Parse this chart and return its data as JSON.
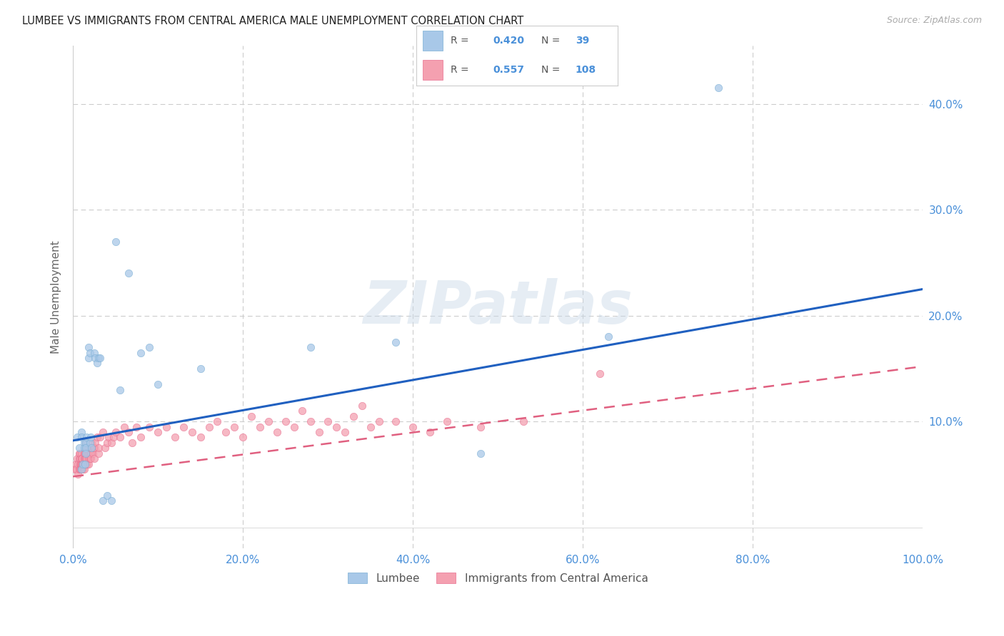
{
  "title": "LUMBEE VS IMMIGRANTS FROM CENTRAL AMERICA MALE UNEMPLOYMENT CORRELATION CHART",
  "source": "Source: ZipAtlas.com",
  "ylabel": "Male Unemployment",
  "xlim": [
    0,
    1.0
  ],
  "ylim": [
    -0.02,
    0.455
  ],
  "xticks": [
    0.0,
    0.2,
    0.4,
    0.6,
    0.8,
    1.0
  ],
  "xtick_labels": [
    "0.0%",
    "20.0%",
    "40.0%",
    "60.0%",
    "80.0%",
    "100.0%"
  ],
  "yticks": [
    0.0,
    0.1,
    0.2,
    0.3,
    0.4
  ],
  "ytick_labels": [
    "",
    "10.0%",
    "20.0%",
    "30.0%",
    "40.0%"
  ],
  "blue_color": "#a8c8e8",
  "blue_edge": "#7bafd4",
  "pink_color": "#f4a0b0",
  "pink_edge": "#e87090",
  "blue_line_color": "#2060c0",
  "pink_line_color": "#e06080",
  "blue_R": 0.42,
  "blue_N": 39,
  "pink_R": 0.557,
  "pink_N": 108,
  "legend_labels": [
    "Lumbee",
    "Immigrants from Central America"
  ],
  "watermark": "ZIPatlas",
  "blue_line_x0": 0.0,
  "blue_line_y0": 0.082,
  "blue_line_x1": 1.0,
  "blue_line_y1": 0.225,
  "pink_line_x0": 0.0,
  "pink_line_y0": 0.048,
  "pink_line_x1": 1.0,
  "pink_line_y1": 0.152,
  "lumbee_x": [
    0.005,
    0.007,
    0.01,
    0.01,
    0.01,
    0.012,
    0.013,
    0.013,
    0.014,
    0.015,
    0.015,
    0.015,
    0.016,
    0.018,
    0.018,
    0.02,
    0.02,
    0.021,
    0.022,
    0.025,
    0.026,
    0.028,
    0.03,
    0.032,
    0.035,
    0.04,
    0.045,
    0.05,
    0.055,
    0.065,
    0.08,
    0.09,
    0.1,
    0.15,
    0.28,
    0.38,
    0.48,
    0.63,
    0.76
  ],
  "lumbee_y": [
    0.085,
    0.075,
    0.09,
    0.085,
    0.055,
    0.06,
    0.08,
    0.075,
    0.06,
    0.08,
    0.075,
    0.07,
    0.085,
    0.17,
    0.16,
    0.165,
    0.08,
    0.085,
    0.075,
    0.165,
    0.16,
    0.155,
    0.16,
    0.16,
    0.025,
    0.03,
    0.025,
    0.27,
    0.13,
    0.24,
    0.165,
    0.17,
    0.135,
    0.15,
    0.17,
    0.175,
    0.07,
    0.18,
    0.415
  ],
  "immig_x": [
    0.002,
    0.003,
    0.004,
    0.005,
    0.006,
    0.006,
    0.007,
    0.007,
    0.007,
    0.008,
    0.008,
    0.008,
    0.008,
    0.009,
    0.009,
    0.01,
    0.01,
    0.01,
    0.01,
    0.01,
    0.01,
    0.011,
    0.011,
    0.012,
    0.012,
    0.013,
    0.013,
    0.013,
    0.013,
    0.014,
    0.014,
    0.014,
    0.015,
    0.015,
    0.015,
    0.015,
    0.016,
    0.016,
    0.017,
    0.017,
    0.018,
    0.018,
    0.018,
    0.019,
    0.02,
    0.02,
    0.02,
    0.021,
    0.021,
    0.022,
    0.022,
    0.023,
    0.024,
    0.025,
    0.025,
    0.026,
    0.028,
    0.03,
    0.03,
    0.032,
    0.035,
    0.038,
    0.04,
    0.042,
    0.045,
    0.048,
    0.05,
    0.055,
    0.06,
    0.065,
    0.07,
    0.075,
    0.08,
    0.09,
    0.1,
    0.11,
    0.12,
    0.13,
    0.14,
    0.15,
    0.16,
    0.17,
    0.18,
    0.19,
    0.2,
    0.21,
    0.22,
    0.23,
    0.24,
    0.25,
    0.26,
    0.27,
    0.28,
    0.29,
    0.3,
    0.31,
    0.32,
    0.33,
    0.34,
    0.35,
    0.36,
    0.38,
    0.4,
    0.42,
    0.44,
    0.48,
    0.53,
    0.62
  ],
  "immig_y": [
    0.055,
    0.06,
    0.055,
    0.065,
    0.06,
    0.05,
    0.055,
    0.065,
    0.07,
    0.06,
    0.065,
    0.055,
    0.07,
    0.06,
    0.055,
    0.055,
    0.06,
    0.065,
    0.07,
    0.06,
    0.065,
    0.06,
    0.065,
    0.055,
    0.06,
    0.065,
    0.06,
    0.055,
    0.07,
    0.06,
    0.065,
    0.07,
    0.075,
    0.08,
    0.06,
    0.065,
    0.065,
    0.075,
    0.07,
    0.06,
    0.065,
    0.07,
    0.06,
    0.075,
    0.07,
    0.065,
    0.075,
    0.07,
    0.065,
    0.075,
    0.08,
    0.07,
    0.075,
    0.065,
    0.075,
    0.08,
    0.085,
    0.07,
    0.075,
    0.085,
    0.09,
    0.075,
    0.08,
    0.085,
    0.08,
    0.085,
    0.09,
    0.085,
    0.095,
    0.09,
    0.08,
    0.095,
    0.085,
    0.095,
    0.09,
    0.095,
    0.085,
    0.095,
    0.09,
    0.085,
    0.095,
    0.1,
    0.09,
    0.095,
    0.085,
    0.105,
    0.095,
    0.1,
    0.09,
    0.1,
    0.095,
    0.11,
    0.1,
    0.09,
    0.1,
    0.095,
    0.09,
    0.105,
    0.115,
    0.095,
    0.1,
    0.1,
    0.095,
    0.09,
    0.1,
    0.095,
    0.1,
    0.145
  ]
}
